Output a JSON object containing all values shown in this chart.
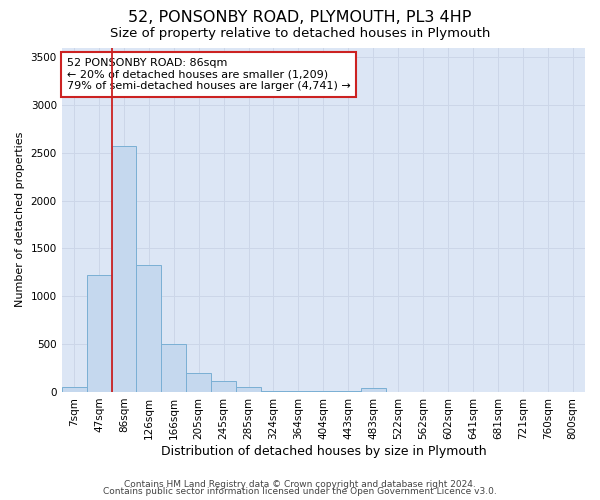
{
  "title": "52, PONSONBY ROAD, PLYMOUTH, PL3 4HP",
  "subtitle": "Size of property relative to detached houses in Plymouth",
  "xlabel": "Distribution of detached houses by size in Plymouth",
  "ylabel": "Number of detached properties",
  "categories": [
    "7sqm",
    "47sqm",
    "86sqm",
    "126sqm",
    "166sqm",
    "205sqm",
    "245sqm",
    "285sqm",
    "324sqm",
    "364sqm",
    "404sqm",
    "443sqm",
    "483sqm",
    "522sqm",
    "562sqm",
    "602sqm",
    "641sqm",
    "681sqm",
    "721sqm",
    "760sqm",
    "800sqm"
  ],
  "values": [
    55,
    1220,
    2570,
    1330,
    500,
    200,
    110,
    55,
    10,
    5,
    5,
    5,
    40,
    0,
    0,
    0,
    0,
    0,
    0,
    0,
    0
  ],
  "bar_color": "#c5d8ee",
  "bar_edge_color": "#7aafd4",
  "vline_x_index": 2,
  "vline_color": "#cc2222",
  "annotation_text": "52 PONSONBY ROAD: 86sqm\n← 20% of detached houses are smaller (1,209)\n79% of semi-detached houses are larger (4,741) →",
  "annotation_box_color": "white",
  "annotation_box_edge": "#cc2222",
  "ylim": [
    0,
    3600
  ],
  "yticks": [
    0,
    500,
    1000,
    1500,
    2000,
    2500,
    3000,
    3500
  ],
  "grid_color": "#ccd6e8",
  "bg_color": "#dce6f5",
  "footer1": "Contains HM Land Registry data © Crown copyright and database right 2024.",
  "footer2": "Contains public sector information licensed under the Open Government Licence v3.0.",
  "title_fontsize": 11.5,
  "subtitle_fontsize": 9.5,
  "xlabel_fontsize": 9,
  "ylabel_fontsize": 8,
  "annotation_fontsize": 8,
  "tick_fontsize": 7.5,
  "footer_fontsize": 6.5
}
